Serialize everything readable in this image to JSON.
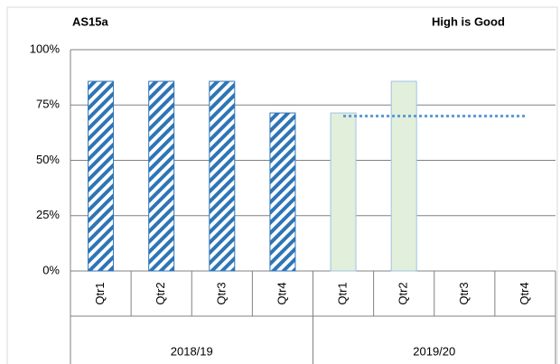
{
  "chart_data": {
    "type": "bar",
    "title": "AS15a",
    "subtitle": "High is Good",
    "groups": [
      {
        "label": "2018/19",
        "categories": [
          "Qtr1",
          "Qtr2",
          "Qtr3",
          "Qtr4"
        ]
      },
      {
        "label": "2019/20",
        "categories": [
          "Qtr1",
          "Qtr2",
          "Qtr3",
          "Qtr4"
        ]
      }
    ],
    "series": [
      {
        "type": "bar",
        "pattern": "hatch",
        "color": "#2e75b6",
        "values": [
          85.7,
          85.7,
          85.7,
          71.4,
          null,
          null,
          null,
          null
        ]
      },
      {
        "type": "bar",
        "pattern": "solid",
        "color": "#e2efda",
        "edge_color": "#9dc3e6",
        "values": [
          null,
          null,
          null,
          null,
          71.4,
          85.7,
          null,
          null
        ]
      },
      {
        "type": "line",
        "style": "dotted",
        "color": "#5b9bd5",
        "values": [
          null,
          null,
          null,
          null,
          70,
          70,
          70,
          70
        ]
      }
    ],
    "ylim": [
      0,
      100
    ],
    "yticks": [
      {
        "value": 0,
        "label": "0%"
      },
      {
        "value": 25,
        "label": "25%"
      },
      {
        "value": 50,
        "label": "50%"
      },
      {
        "value": 75,
        "label": "75%"
      },
      {
        "value": 100,
        "label": "100%"
      }
    ],
    "grid": true
  }
}
